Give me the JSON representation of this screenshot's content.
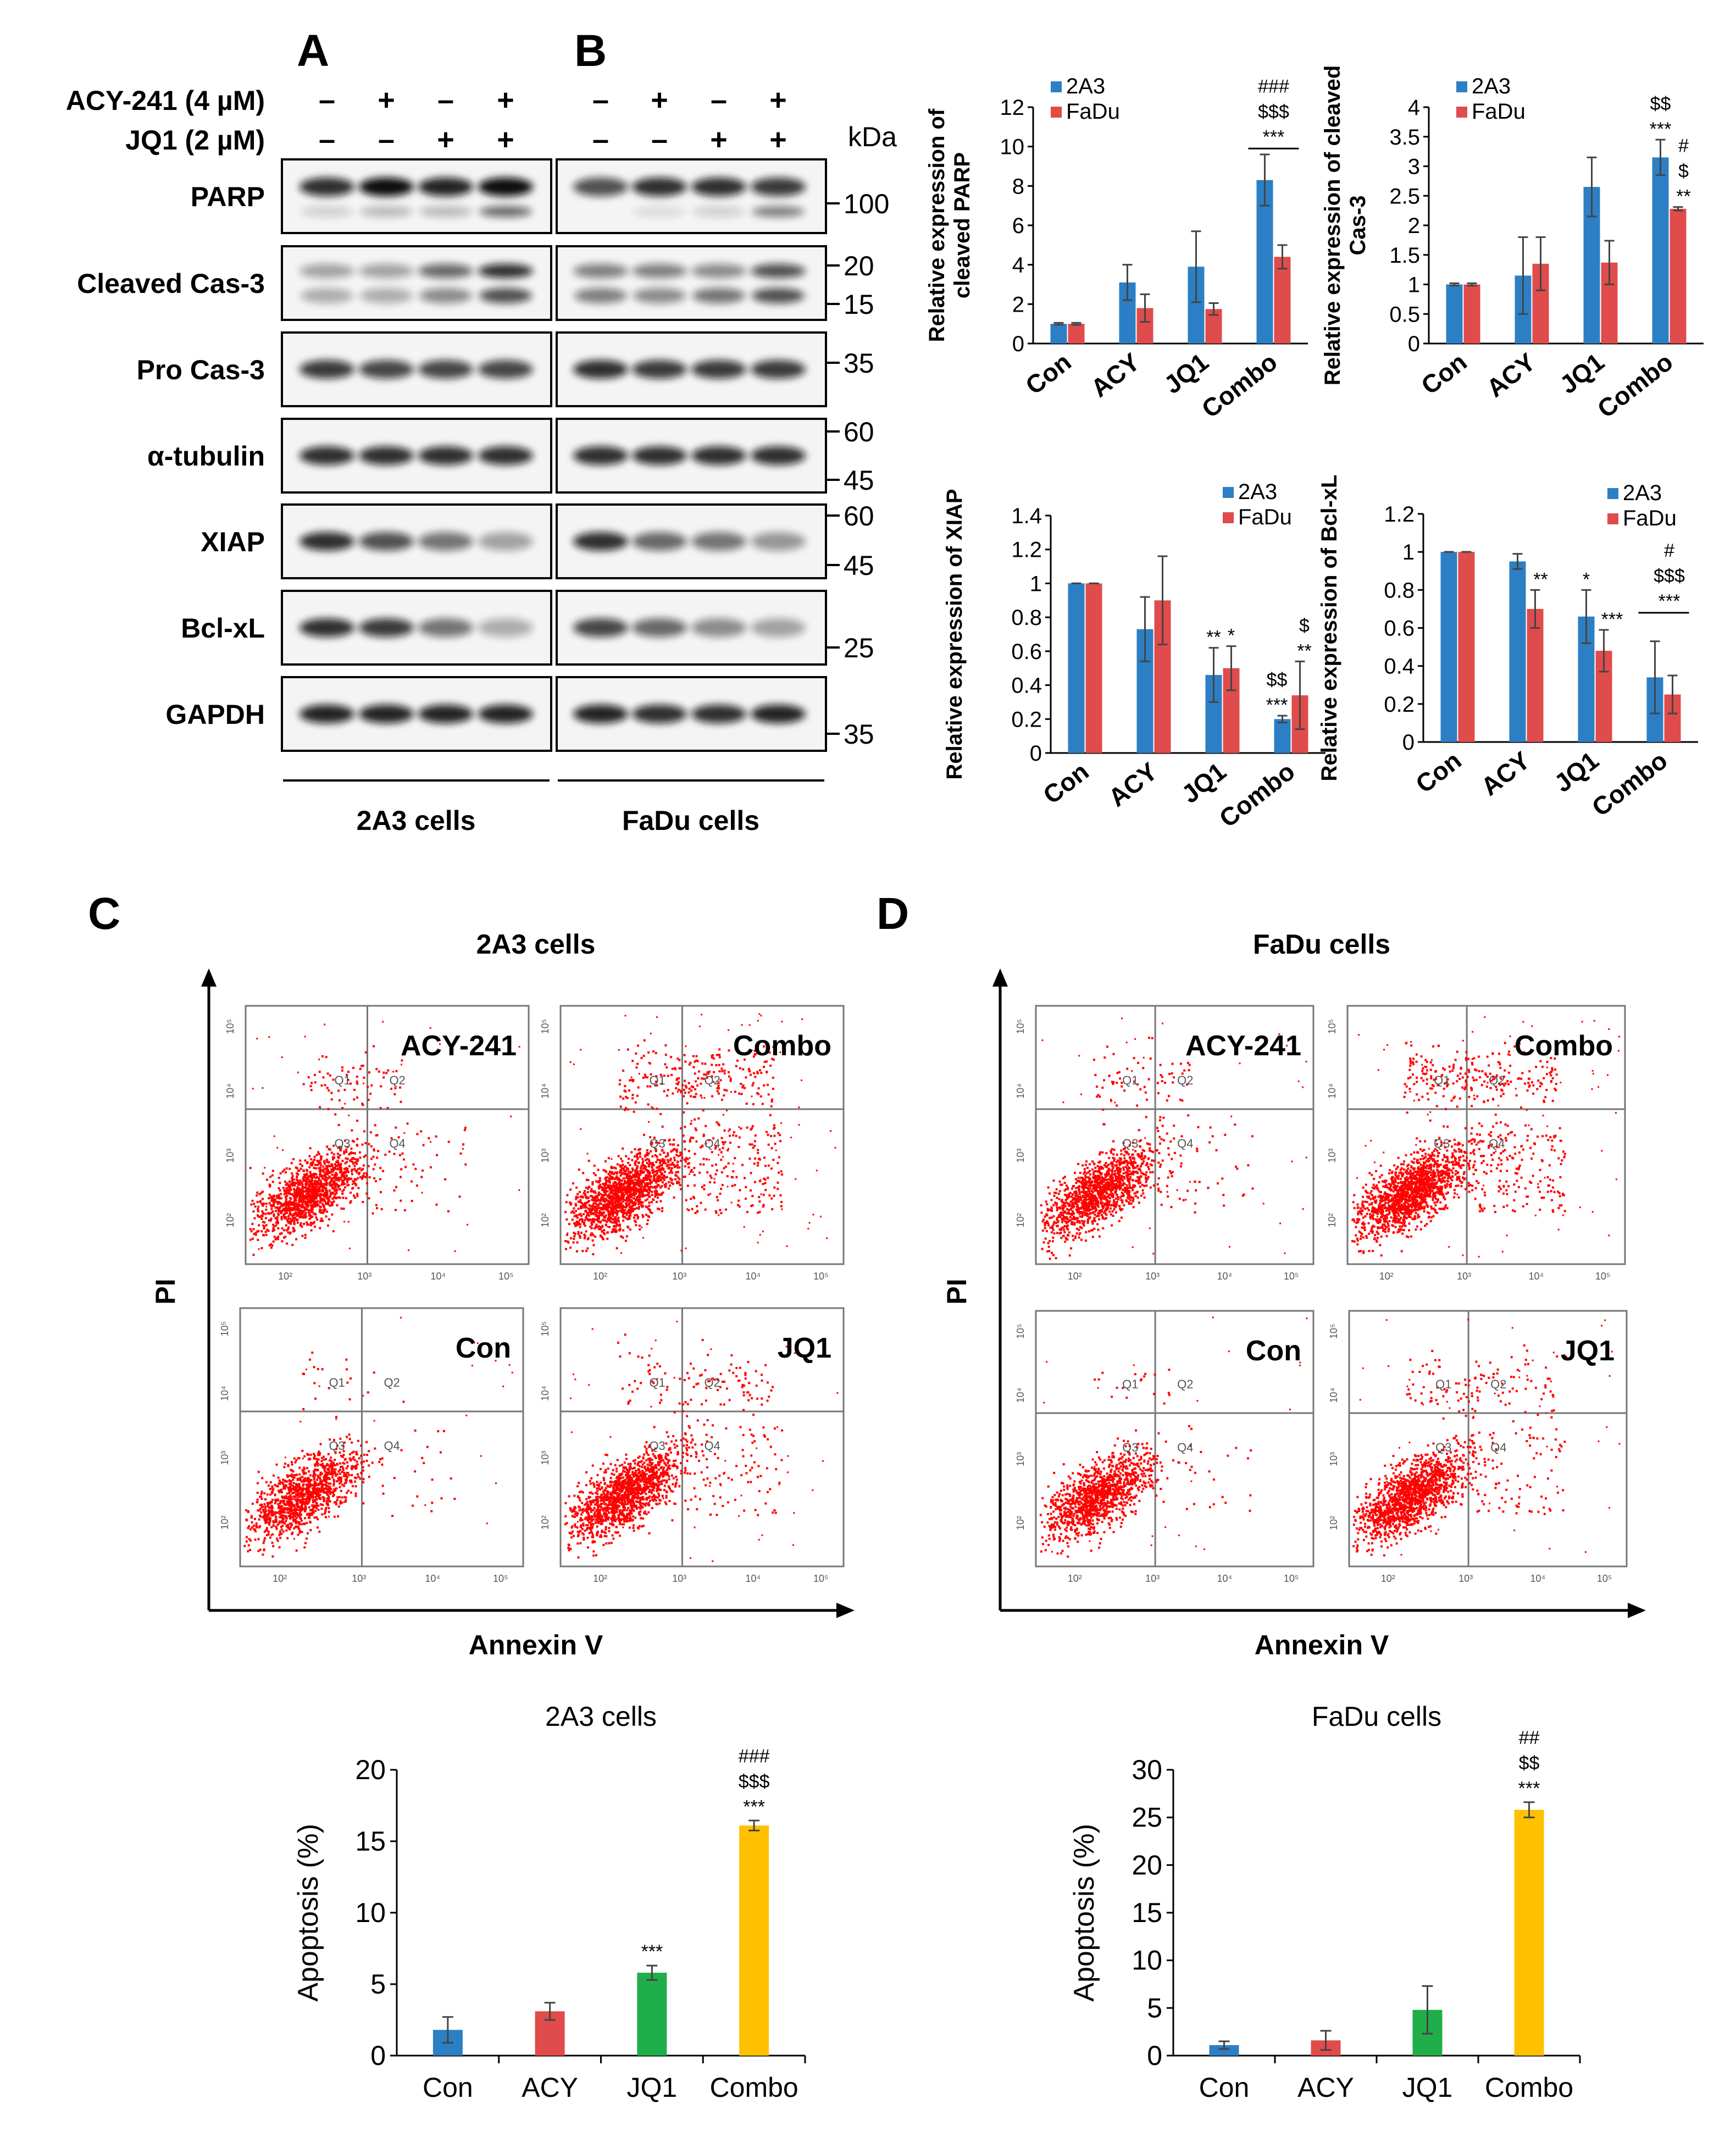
{
  "panels": {
    "a": "A",
    "b": "B",
    "c": "C",
    "d": "D"
  },
  "treatments": [
    {
      "label": "ACY-241  (4 µM)",
      "a": [
        "–",
        "+",
        "–",
        "+"
      ],
      "b": [
        "–",
        "+",
        "–",
        "+"
      ]
    },
    {
      "label": "JQ1 (2 µM)",
      "a": [
        "–",
        "–",
        "+",
        "+"
      ],
      "b": [
        "–",
        "–",
        "+",
        "+"
      ]
    }
  ],
  "kda_label": "kDa",
  "blots": [
    {
      "label": "PARP",
      "markers": [
        "100"
      ],
      "inten": [
        [
          0.85,
          1.0,
          0.9,
          1.0
        ],
        [
          0.7,
          0.85,
          0.85,
          0.8
        ]
      ],
      "low": [
        [
          0.15,
          0.25,
          0.25,
          0.6
        ],
        [
          0.0,
          0.1,
          0.15,
          0.5
        ]
      ]
    },
    {
      "label": "Cleaved Cas-3",
      "markers": [
        "20",
        "15"
      ],
      "inten": [
        [
          0.35,
          0.35,
          0.6,
          0.85
        ],
        [
          0.5,
          0.5,
          0.45,
          0.7
        ]
      ],
      "low": [
        [
          0.3,
          0.3,
          0.45,
          0.7
        ],
        [
          0.5,
          0.45,
          0.55,
          0.7
        ]
      ]
    },
    {
      "label": "Pro Cas-3",
      "markers": [
        "35"
      ],
      "inten": [
        [
          0.8,
          0.75,
          0.75,
          0.75
        ],
        [
          0.85,
          0.8,
          0.8,
          0.8
        ]
      ]
    },
    {
      "label": "α-tubulin",
      "markers": [
        "60",
        "45"
      ],
      "inten": [
        [
          0.85,
          0.85,
          0.85,
          0.85
        ],
        [
          0.85,
          0.85,
          0.85,
          0.85
        ]
      ]
    },
    {
      "label": "XIAP",
      "markers": [
        "60",
        "45"
      ],
      "inten": [
        [
          0.85,
          0.7,
          0.55,
          0.35
        ],
        [
          0.85,
          0.6,
          0.55,
          0.4
        ]
      ]
    },
    {
      "label": "Bcl-xL",
      "markers": [
        "25"
      ],
      "inten": [
        [
          0.85,
          0.8,
          0.55,
          0.3
        ],
        [
          0.75,
          0.6,
          0.45,
          0.35
        ]
      ]
    },
    {
      "label": "GAPDH",
      "markers": [
        "35"
      ],
      "inten": [
        [
          0.9,
          0.9,
          0.9,
          0.9
        ],
        [
          0.9,
          0.85,
          0.85,
          0.9
        ]
      ]
    }
  ],
  "cell_labels": {
    "a": "2A3 cells",
    "b": "FaDu cells"
  },
  "flow": {
    "c_title": "2A3  cells",
    "d_title": "FaDu cells",
    "x_axis": "Annexin V",
    "y_axis": "PI",
    "plot_titles": [
      "ACY-241",
      "Combo",
      "Con",
      "JQ1"
    ],
    "quadrants": [
      "Q1",
      "Q2",
      "Q3",
      "Q4"
    ],
    "x_ticks": [
      "10²",
      "10³",
      "10⁴",
      "10⁵"
    ],
    "y_ticks": [
      "10⁵",
      "10⁴",
      "10³",
      "10²"
    ]
  },
  "colors": {
    "blue": "#2c7fc4",
    "red": "#e04b4b",
    "green": "#1fae4a",
    "yellow": "#ffc000",
    "dot": "#ff0000"
  },
  "chart_data": [
    {
      "type": "bar",
      "ylabel": "Relative expression of cleaved PARP",
      "categories": [
        "Con",
        "ACY",
        "JQ1",
        "Combo"
      ],
      "ylim": [
        0,
        12
      ],
      "yticks": [
        "0",
        "2",
        "4",
        "6",
        "8",
        "10",
        "12"
      ],
      "series": [
        {
          "name": "2A3",
          "values": [
            1,
            3.1,
            3.9,
            8.3
          ],
          "errors": [
            0.05,
            0.9,
            1.8,
            1.3
          ]
        },
        {
          "name": "FaDu",
          "values": [
            1,
            1.8,
            1.75,
            4.4
          ],
          "errors": [
            0.05,
            0.7,
            0.3,
            0.6
          ]
        }
      ],
      "annotations": [
        [
          "###",
          "$$$",
          "***"
        ]
      ],
      "annotation_target": [
        3,
        "group"
      ]
    },
    {
      "type": "bar",
      "ylabel": "Relative expression of cleaved Cas-3",
      "categories": [
        "Con",
        "ACY",
        "JQ1",
        "Combo"
      ],
      "ylim": [
        0,
        4
      ],
      "yticks": [
        "0",
        "0.5",
        "1",
        "1.5",
        "2",
        "2.5",
        "3",
        "3.5",
        "4"
      ],
      "series": [
        {
          "name": "2A3",
          "values": [
            1,
            1.15,
            2.65,
            3.15
          ],
          "errors": [
            0.02,
            0.65,
            0.5,
            0.3
          ]
        },
        {
          "name": "FaDu",
          "values": [
            1,
            1.35,
            1.37,
            2.28
          ],
          "errors": [
            0.02,
            0.45,
            0.37,
            0.03
          ]
        }
      ],
      "annotations_a": [
        "$$",
        "***"
      ],
      "annotations_b": [
        "#",
        "$",
        "**"
      ]
    },
    {
      "type": "bar",
      "ylabel": "Relative expression of XIAP",
      "categories": [
        "Con",
        "ACY",
        "JQ1",
        "Combo"
      ],
      "ylim": [
        0,
        1.4
      ],
      "yticks": [
        "0",
        "0.2",
        "0.4",
        "0.6",
        "0.8",
        "1",
        "1.2",
        "1.4"
      ],
      "series": [
        {
          "name": "2A3",
          "values": [
            1,
            0.73,
            0.46,
            0.2
          ],
          "errors": [
            0.0,
            0.19,
            0.16,
            0.02
          ]
        },
        {
          "name": "FaDu",
          "values": [
            1,
            0.9,
            0.5,
            0.34
          ],
          "errors": [
            0.0,
            0.26,
            0.13,
            0.2
          ]
        }
      ],
      "jq1_a": [
        "**"
      ],
      "jq1_b": [
        "*"
      ],
      "combo_a": [
        "$$",
        "***"
      ],
      "combo_b": [
        "$",
        "**"
      ]
    },
    {
      "type": "bar",
      "ylabel": "Relative expression of Bcl-xL",
      "categories": [
        "Con",
        "ACY",
        "JQ1",
        "Combo"
      ],
      "ylim": [
        0,
        1.2
      ],
      "yticks": [
        "0",
        "0.2",
        "0.4",
        "0.6",
        "0.8",
        "1",
        "1.2"
      ],
      "series": [
        {
          "name": "2A3",
          "values": [
            1,
            0.95,
            0.66,
            0.34
          ],
          "errors": [
            0.0,
            0.04,
            0.14,
            0.19
          ]
        },
        {
          "name": "FaDu",
          "values": [
            1,
            0.7,
            0.48,
            0.25
          ],
          "errors": [
            0.0,
            0.1,
            0.11,
            0.1
          ]
        }
      ],
      "acy_b": [
        "**"
      ],
      "jq1_a": [
        "*"
      ],
      "jq1_b": [
        "***"
      ],
      "combo": [
        "#",
        "$$$",
        "***"
      ]
    },
    {
      "type": "bar",
      "title": "2A3 cells",
      "ylabel": "Apoptosis (%)",
      "categories": [
        "Con",
        "ACY",
        "JQ1",
        "Combo"
      ],
      "ylim": [
        0,
        20
      ],
      "yticks": [
        "0",
        "5",
        "10",
        "15",
        "20"
      ],
      "values": [
        1.8,
        3.1,
        5.8,
        16.1
      ],
      "errors": [
        0.9,
        0.6,
        0.5,
        0.35
      ],
      "annotations": [
        [],
        [],
        [
          "***"
        ],
        [
          "###",
          "$$$",
          "***"
        ]
      ]
    },
    {
      "type": "bar",
      "title": "FaDu cells",
      "ylabel": "Apoptosis (%)",
      "categories": [
        "Con",
        "ACY",
        "JQ1",
        "Combo"
      ],
      "ylim": [
        0,
        30
      ],
      "yticks": [
        "0",
        "5",
        "10",
        "15",
        "20",
        "25",
        "30"
      ],
      "values": [
        1.1,
        1.6,
        4.8,
        25.8
      ],
      "errors": [
        0.4,
        1.0,
        2.5,
        0.8
      ],
      "annotations": [
        [],
        [],
        [],
        [
          "##",
          "$$",
          "***"
        ]
      ]
    }
  ]
}
